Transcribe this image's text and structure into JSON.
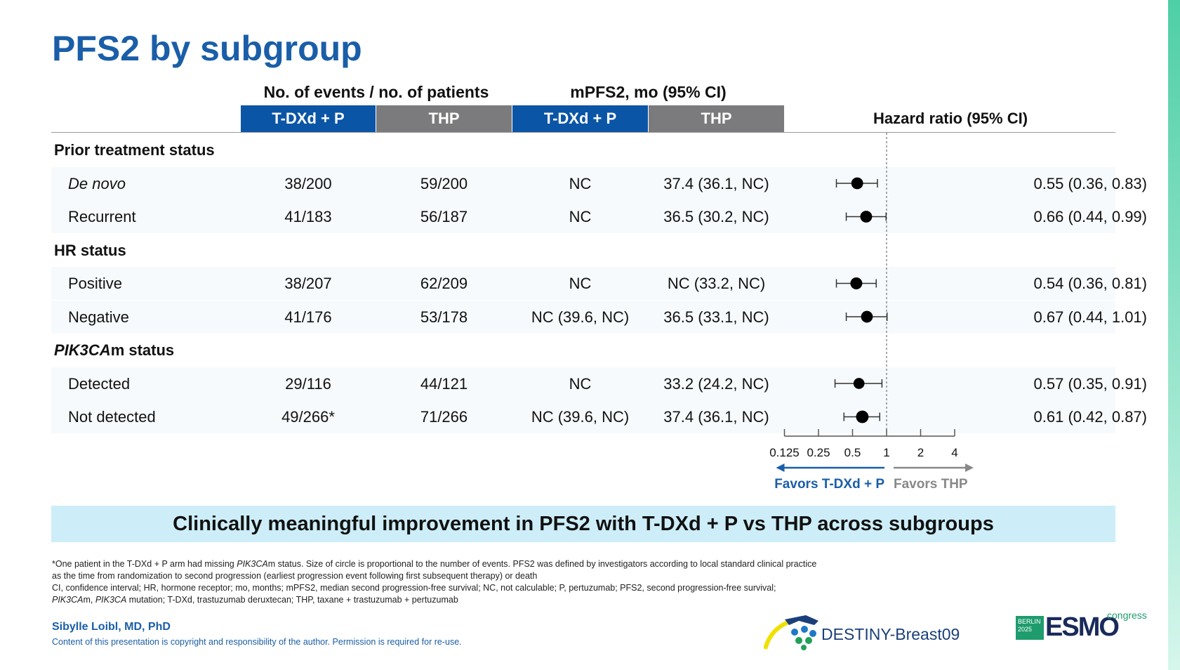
{
  "title": "PFS2 by subgroup",
  "headers": {
    "events_group": "No. of events / no. of patients",
    "mpfs2_group": "mPFS2, mo (95% CI)",
    "col1": "T-DXd + P",
    "col2": "THP",
    "col3": "T-DXd + P",
    "col4": "THP",
    "hr": "Hazard ratio (95% CI)"
  },
  "chart_data": {
    "type": "forest",
    "xlabel": "Hazard ratio (95% CI)",
    "xscale": "log2",
    "xlim": [
      0.125,
      4
    ],
    "xticks": [
      "0.125",
      "0.25",
      "0.5",
      "1",
      "2",
      "4"
    ],
    "reference_line": 1,
    "favors_left": "Favors T-DXd + P",
    "favors_right": "Favors THP",
    "rows": [
      {
        "type": "group",
        "label": "Prior treatment status"
      },
      {
        "type": "item",
        "label": "De novo",
        "italic": true,
        "ev1": "38/200",
        "ev2": "59/200",
        "m1": "NC",
        "m2": "37.4 (36.1, NC)",
        "hr": 0.55,
        "lo": 0.36,
        "hi": 0.83,
        "events": 97,
        "hr_text": "0.55 (0.36, 0.83)"
      },
      {
        "type": "item",
        "label": "Recurrent",
        "ev1": "41/183",
        "ev2": "56/187",
        "m1": "NC",
        "m2": "36.5 (30.2, NC)",
        "hr": 0.66,
        "lo": 0.44,
        "hi": 0.99,
        "events": 97,
        "hr_text": "0.66 (0.44, 0.99)"
      },
      {
        "type": "group",
        "label": "HR status"
      },
      {
        "type": "item",
        "label": "Positive",
        "ev1": "38/207",
        "ev2": "62/209",
        "m1": "NC",
        "m2": "NC (33.2, NC)",
        "hr": 0.54,
        "lo": 0.36,
        "hi": 0.81,
        "events": 100,
        "hr_text": "0.54 (0.36, 0.81)"
      },
      {
        "type": "item",
        "label": "Negative",
        "ev1": "41/176",
        "ev2": "53/178",
        "m1": "NC (39.6, NC)",
        "m2": "36.5 (33.1, NC)",
        "hr": 0.67,
        "lo": 0.44,
        "hi": 1.01,
        "events": 94,
        "hr_text": "0.67 (0.44, 1.01)"
      },
      {
        "type": "group",
        "label": "PIK3CAm status",
        "italic_prefix": "PIK3CA",
        "suffix": "m status"
      },
      {
        "type": "item",
        "label": "Detected",
        "ev1": "29/116",
        "ev2": "44/121",
        "m1": "NC",
        "m2": "33.2 (24.2, NC)",
        "hr": 0.57,
        "lo": 0.35,
        "hi": 0.91,
        "events": 73,
        "hr_text": "0.57 (0.35, 0.91)"
      },
      {
        "type": "item",
        "label": "Not detected",
        "ev1": "49/266*",
        "ev2": "71/266",
        "m1": "NC (39.6, NC)",
        "m2": "37.4 (36.1, NC)",
        "hr": 0.61,
        "lo": 0.42,
        "hi": 0.87,
        "events": 120,
        "hr_text": "0.61 (0.42, 0.87)"
      }
    ]
  },
  "banner": "Clinically meaningful improvement in PFS2 with T-DXd + P vs THP across subgroups",
  "footnotes": {
    "l1a": "*One patient in the T-DXd + P arm had missing ",
    "l1i": "PIK3CA",
    "l1b": "m status. Size of circle is proportional to the number of events. PFS2 was defined by investigators according to local standard clinical practice",
    "l2": "as the time from randomization to second progression (earliest progression event following first subsequent therapy) or death",
    "l3": "CI, confidence interval; HR, hormone receptor; mo, months; mPFS2, median second progression-free survival; NC, not calculable; P, pertuzumab; PFS2, second progression-free survival;",
    "l4i1": "PIK3CA",
    "l4a": "m, ",
    "l4i2": "PIK3CA",
    "l4b": " mutation; T-DXd, trastuzumab deruxtecan; THP, taxane + trastuzumab + pertuzumab"
  },
  "author": "Sibylle Loibl, MD, PhD",
  "copyright": "Content of this presentation is copyright and responsibility of the author. Permission is required for re-use.",
  "logos": {
    "destiny": "DESTINY-Breast09",
    "esmo": "ESMO",
    "esmo_city": "BERLIN",
    "esmo_year": "2025",
    "esmo_congress": "congress"
  },
  "colors": {
    "blue": "#0b55a6",
    "grey": "#7b7b7d",
    "banner": "#cdeef8"
  }
}
